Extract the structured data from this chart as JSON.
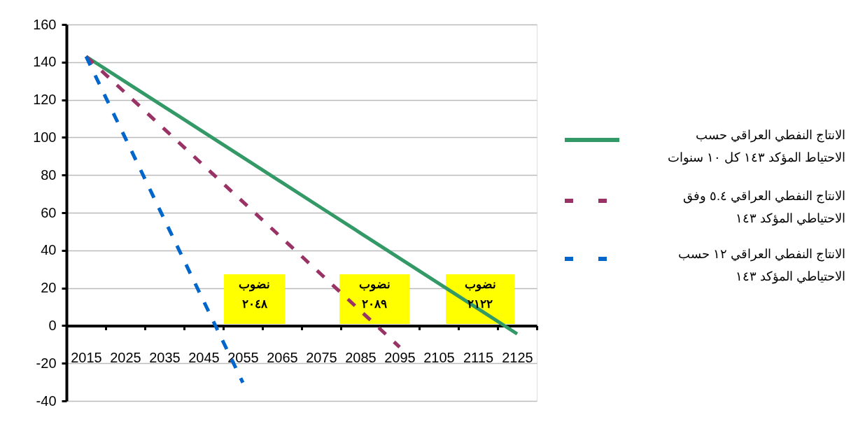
{
  "chart_data": {
    "type": "line",
    "categories": [
      "2015",
      "2025",
      "2035",
      "2045",
      "2055",
      "2065",
      "2075",
      "2085",
      "2095",
      "2105",
      "2115",
      "2125"
    ],
    "series": [
      {
        "name": "الانتاج النفطي العراقي حسب\nالاحتياط المؤكد ١٤٣ كل ١٠ سنوات",
        "color": "#339966",
        "line_style": "solid",
        "values": [
          143,
          129.6,
          116.2,
          102.8,
          89.4,
          76,
          62.6,
          49.2,
          35.8,
          22.4,
          9,
          -4.4
        ]
      },
      {
        "name": "الانتاج النفطي العراقي ٥.٤ وفق\nالاحتياطي المؤكد ١٤٣",
        "color": "#993366",
        "line_style": "dashed",
        "values": [
          143,
          123.7,
          104.4,
          85.1,
          65.8,
          46.5,
          27.2,
          7.9,
          -11.4,
          null,
          null,
          null
        ]
      },
      {
        "name": "الانتاج النفطي العراقي ١٢ حسب\nالاحتياطي المؤكد ١٤٣",
        "color": "#0066cc",
        "line_style": "dashed",
        "values": [
          143,
          99.7,
          56.3,
          13,
          -30.3,
          null,
          null,
          null,
          null,
          null,
          null,
          null
        ]
      }
    ],
    "ylim": [
      -40,
      160
    ],
    "yticks": [
      -40,
      -20,
      0,
      20,
      40,
      60,
      80,
      100,
      120,
      140,
      160
    ],
    "grid": "y",
    "legend": "right",
    "annotations": [
      "نضوب\n٢٠٤٨",
      "نضوب\n٢٠٨٩",
      "نضوب\n٢١٢٢"
    ]
  }
}
